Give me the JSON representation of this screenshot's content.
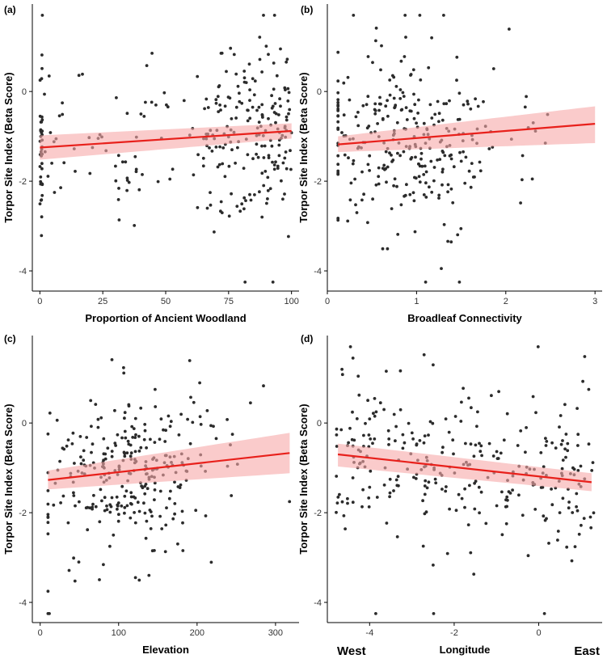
{
  "chart_data": [
    {
      "type": "scatter",
      "panel_label": "(a)",
      "xlabel": "Proportion of Ancient Woodland",
      "ylabel": "Torpor Site Index (Beta Score)",
      "xlim": [
        -3,
        103
      ],
      "ylim": [
        -4.45,
        1.95
      ],
      "xticks": [
        0,
        25,
        50,
        75,
        100
      ],
      "xtick_labels": [
        "0",
        "25",
        "50",
        "75",
        "100"
      ],
      "yticks": [
        -4,
        -2,
        0
      ],
      "ytick_labels": [
        "-4",
        "-2",
        "0"
      ],
      "fit": {
        "x": [
          0,
          100
        ],
        "y": [
          -1.25,
          -0.88
        ],
        "ci_low": [
          -1.52,
          -1.05
        ],
        "ci_high": [
          -0.98,
          -0.71
        ]
      },
      "colors": {
        "line": "#e8201b",
        "band": "#f7a8a8",
        "point": "#2b2b2b"
      },
      "seed": 11,
      "n_points": 300,
      "x_gen": {
        "mode": "bimodal",
        "min": 0,
        "max": 100,
        "cluster": [
          0,
          1
        ],
        "cluster_frac": 0.1,
        "weight": 0.55
      },
      "y_spread": 1.05
    },
    {
      "type": "scatter",
      "panel_label": "(b)",
      "xlabel": "Broadleaf Connectivity",
      "ylabel": "Torpor Site Index (Beta Score)",
      "xlim": [
        0,
        3.08
      ],
      "ylim": [
        -4.45,
        1.95
      ],
      "xticks": [
        0,
        1,
        2,
        3
      ],
      "xtick_labels": [
        "0",
        "1",
        "2",
        "3"
      ],
      "yticks": [
        -4,
        -2,
        0
      ],
      "ytick_labels": [
        "-4",
        "-2",
        "0"
      ],
      "fit": {
        "x": [
          0.12,
          3.0
        ],
        "y": [
          -1.18,
          -0.72
        ],
        "ci_low": [
          -1.35,
          -1.15
        ],
        "ci_high": [
          -1.0,
          -0.33
        ]
      },
      "colors": {
        "line": "#e8201b",
        "band": "#f7a8a8",
        "point": "#2b2b2b"
      },
      "seed": 23,
      "n_points": 300,
      "x_gen": {
        "mode": "skew",
        "min": 0.12,
        "max": 2.9,
        "center": 0.9,
        "sd": 0.5
      },
      "y_spread": 1.05
    },
    {
      "type": "scatter",
      "panel_label": "(c)",
      "xlabel": "Elevation",
      "ylabel": "Torpor Site Index (Beta Score)",
      "xlim": [
        -10,
        330
      ],
      "ylim": [
        -4.45,
        1.95
      ],
      "xticks": [
        0,
        100,
        200,
        300
      ],
      "xtick_labels": [
        "0",
        "100",
        "200",
        "300"
      ],
      "yticks": [
        -4,
        -2,
        0
      ],
      "ytick_labels": [
        "-4",
        "-2",
        "0"
      ],
      "fit": {
        "x": [
          10,
          318
        ],
        "y": [
          -1.27,
          -0.67
        ],
        "ci_low": [
          -1.48,
          -1.12
        ],
        "ci_high": [
          -1.06,
          -0.22
        ]
      },
      "colors": {
        "line": "#e8201b",
        "band": "#f7a8a8",
        "point": "#2b2b2b"
      },
      "seed": 37,
      "n_points": 300,
      "x_gen": {
        "mode": "skew",
        "min": 10,
        "max": 320,
        "center": 115,
        "sd": 55
      },
      "y_spread": 1.05
    },
    {
      "type": "scatter",
      "panel_label": "(d)",
      "xlabel": "Longitude",
      "ylabel": "Torpor Site Index (Beta Score)",
      "xlim": [
        -5.0,
        1.5
      ],
      "ylim": [
        -4.45,
        1.95
      ],
      "xticks": [
        -4,
        -2,
        0
      ],
      "xtick_labels": [
        "-4",
        "-2",
        "0"
      ],
      "yticks": [
        -4,
        -2,
        0
      ],
      "ytick_labels": [
        "-4",
        "-2",
        "0"
      ],
      "fit": {
        "x": [
          -4.75,
          1.25
        ],
        "y": [
          -0.7,
          -1.32
        ],
        "ci_low": [
          -0.97,
          -1.52
        ],
        "ci_high": [
          -0.46,
          -1.12
        ]
      },
      "colors": {
        "line": "#e8201b",
        "band": "#f7a8a8",
        "point": "#2b2b2b"
      },
      "seed": 53,
      "n_points": 300,
      "x_gen": {
        "mode": "uniform",
        "min": -4.8,
        "max": 1.3
      },
      "y_spread": 1.05,
      "direction_labels": {
        "left": "West",
        "right": "East"
      }
    }
  ]
}
